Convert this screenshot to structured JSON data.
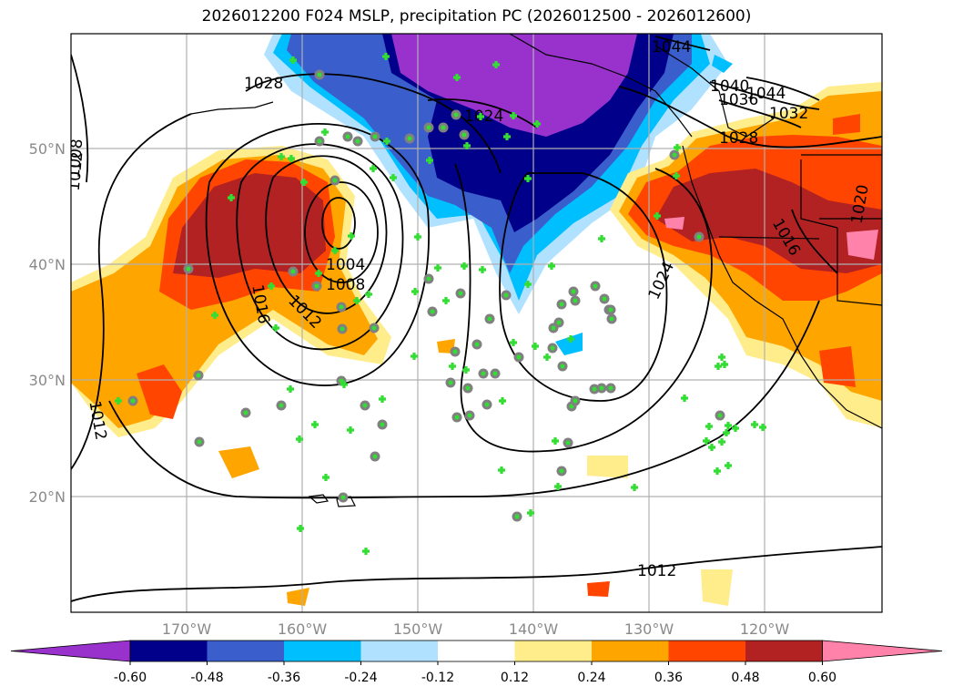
{
  "title": "2026012200 F024 MSLP, precipitation PC (2026012500 - 2026012600)",
  "map": {
    "latitude_labels": [
      "50°N",
      "40°N",
      "30°N",
      "20°N"
    ],
    "longitude_labels": [
      "170°W",
      "160°W",
      "150°W",
      "140°W",
      "130°W",
      "120°W"
    ],
    "isobar_labels": [
      "1044",
      "1044",
      "1040",
      "1036",
      "1032",
      "1028",
      "1028",
      "1024",
      "1024",
      "1020",
      "1016",
      "1016",
      "1012",
      "1012",
      "1012",
      "1012",
      "1008",
      "1008",
      "1004"
    ]
  },
  "colorbar": {
    "ticks": [
      "-0.60",
      "-0.48",
      "-0.36",
      "-0.24",
      "-0.12",
      "0.12",
      "0.24",
      "0.36",
      "0.48",
      "0.60"
    ],
    "colors": [
      "#9932cc",
      "#00008b",
      "#3a5fcd",
      "#00bfff",
      "#b0e2ff",
      "#ffffff",
      "#ffec8b",
      "#ffa500",
      "#ff4500",
      "#b22222",
      "#ff82ab"
    ]
  },
  "colors": {
    "grid": "#b0b0b0",
    "isobar": "#000000",
    "station_plus": "#33dd33",
    "station_circle": "#808080"
  }
}
